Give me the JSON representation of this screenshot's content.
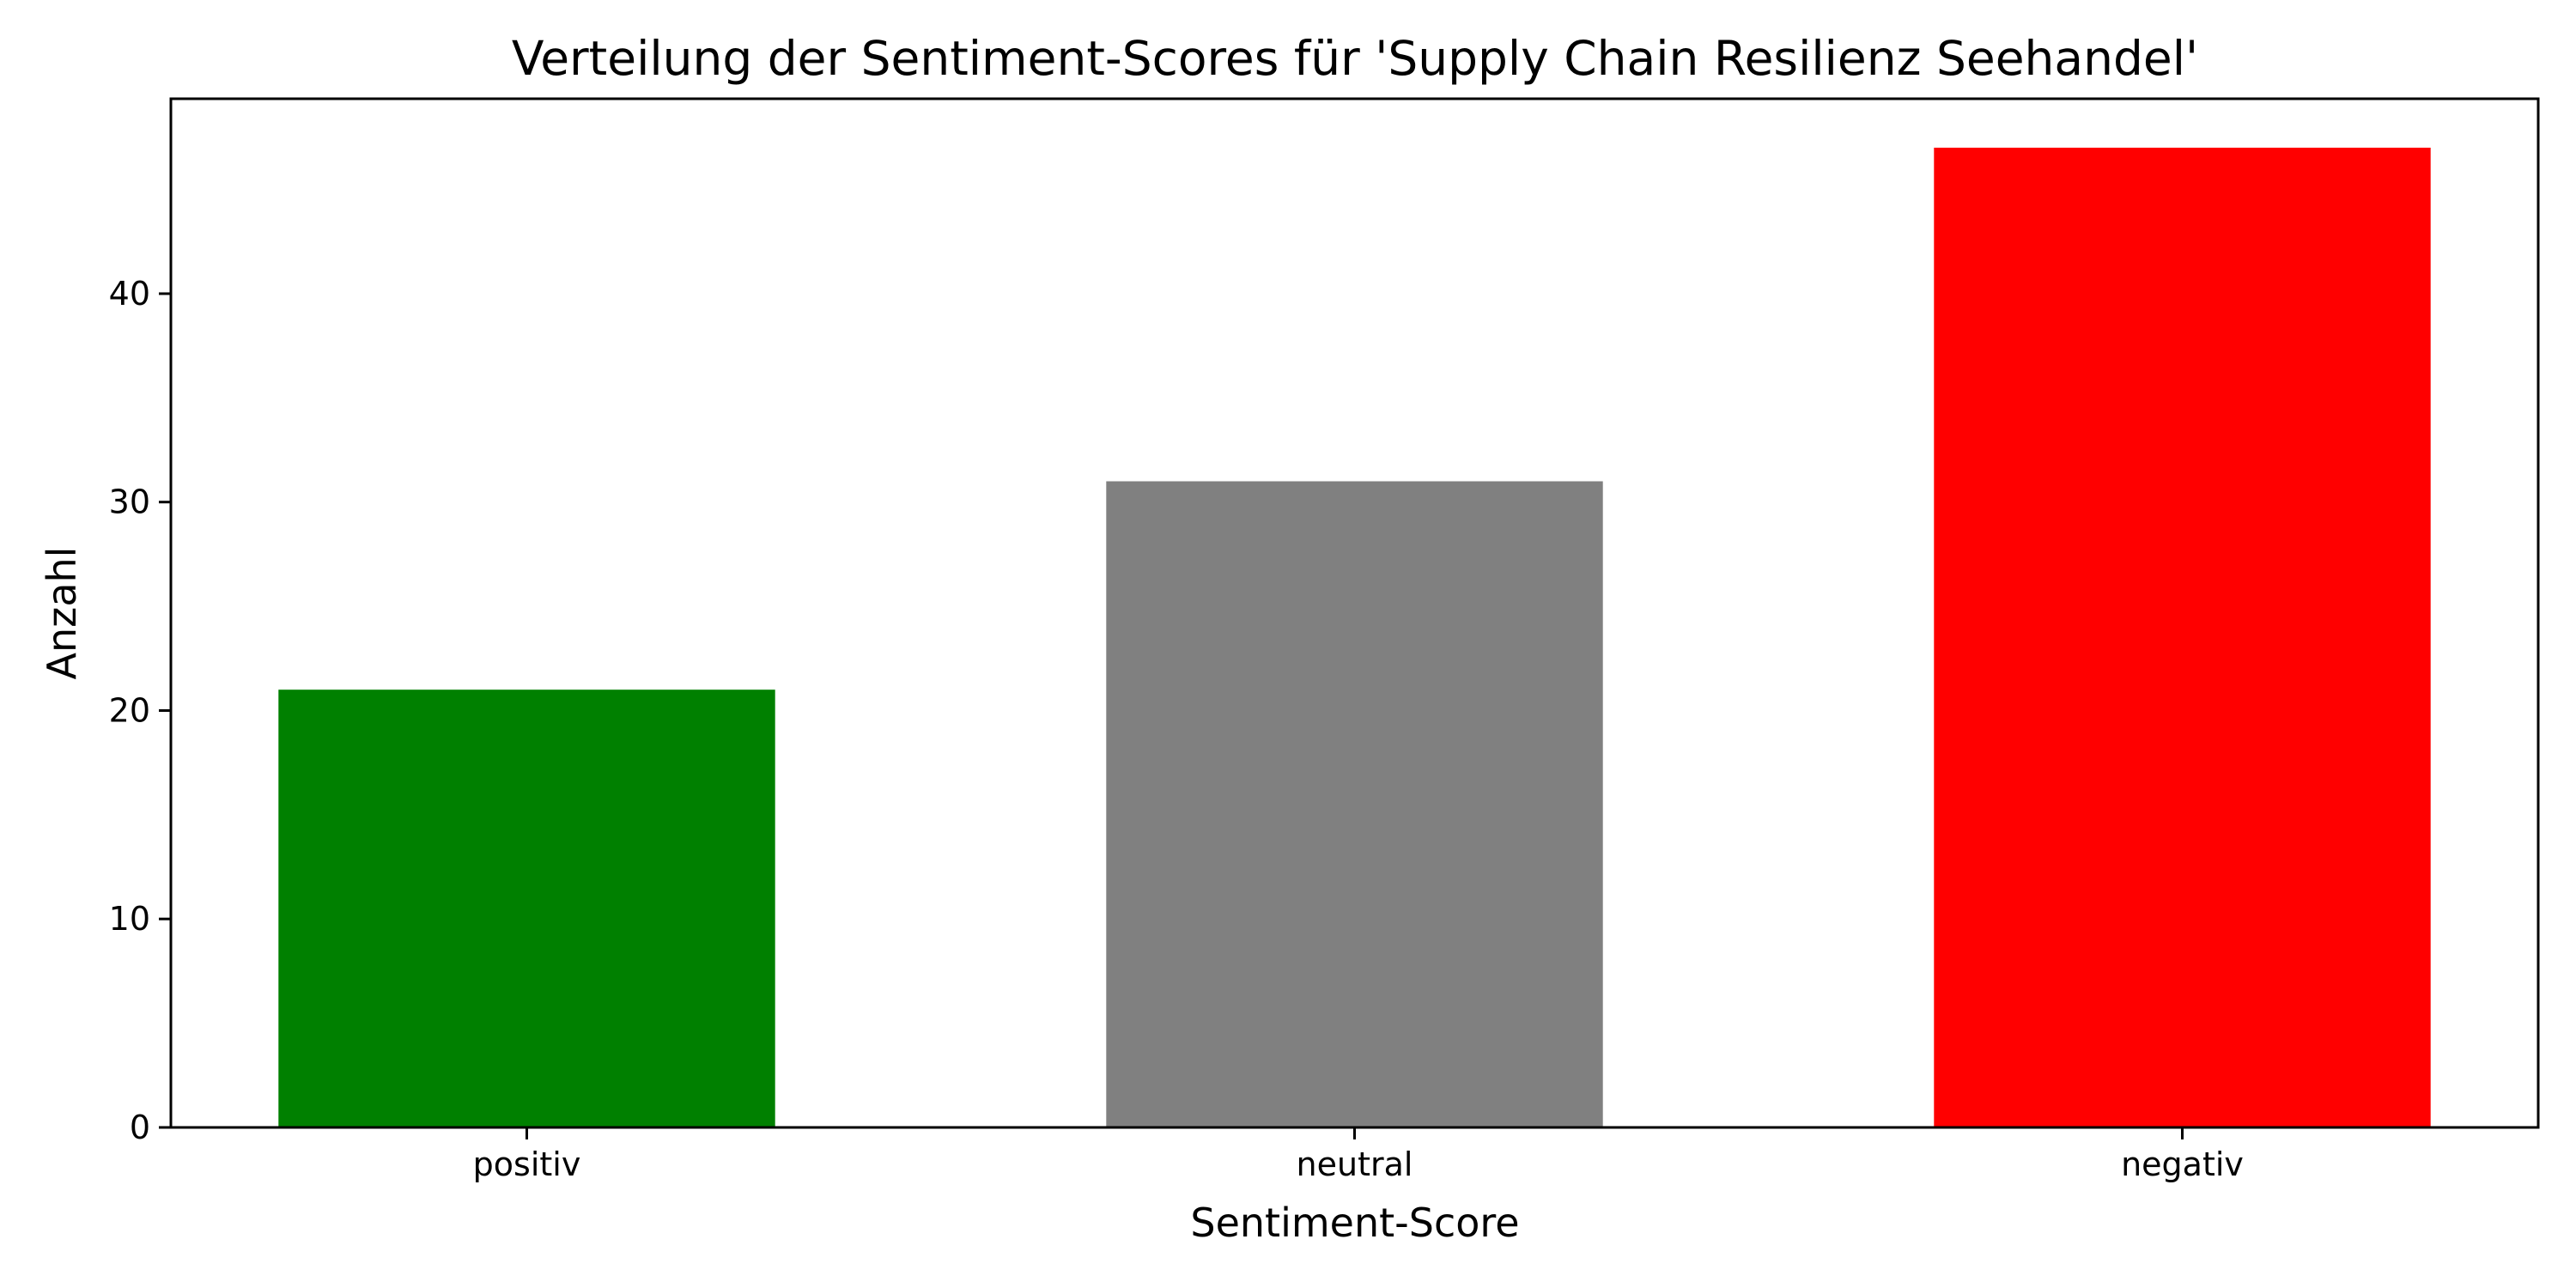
{
  "chart_data": {
    "type": "bar",
    "title": "Verteilung der Sentiment-Scores für 'Supply Chain Resilienz Seehandel'",
    "xlabel": "Sentiment-Score",
    "ylabel": "Anzahl",
    "categories": [
      "positiv",
      "neutral",
      "negativ"
    ],
    "values": [
      21,
      31,
      47
    ],
    "colors": [
      "#008000",
      "#808080",
      "#ff0000"
    ],
    "ylim": [
      0,
      49.35
    ],
    "yticks": [
      0,
      10,
      20,
      30,
      40
    ],
    "grid": false,
    "baseline": {
      "value": 0,
      "style": "dashed",
      "color": "#555555"
    }
  }
}
